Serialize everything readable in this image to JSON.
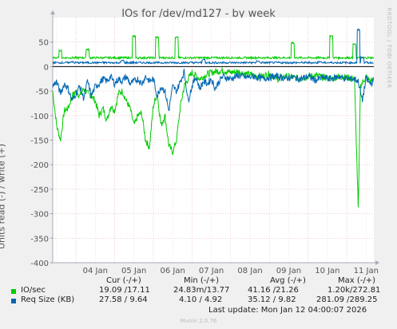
{
  "page": {
    "title": "IOs for /dev/md127 - by week",
    "side_label": "RRDTOOL / TOBI OETIKER",
    "footer_brand": "Munin 2.0.76"
  },
  "chart_data": {
    "type": "line",
    "title": "IOs for /dev/md127 - by week",
    "ylabel": "Units read (-) / write (+)",
    "ylim": [
      -400,
      100
    ],
    "yticks": [
      50,
      0,
      -50,
      -100,
      -150,
      -200,
      -250,
      -300,
      -350,
      -400
    ],
    "xlim": [
      3.4,
      11.7
    ],
    "xticks": [
      {
        "label": "04 Jan",
        "x": 4
      },
      {
        "label": "05 Jan",
        "x": 5
      },
      {
        "label": "06 Jan",
        "x": 6
      },
      {
        "label": "07 Jan",
        "x": 7
      },
      {
        "label": "08 Jan",
        "x": 8
      },
      {
        "label": "09 Jan",
        "x": 9
      },
      {
        "label": "10 Jan",
        "x": 10
      },
      {
        "label": "11 Jan",
        "x": 11
      }
    ],
    "grid": true,
    "series": [
      {
        "name": "IO/sec",
        "color": "#00cc00",
        "write_baseline": 18,
        "write_spikes": [
          [
            3.6,
            33
          ],
          [
            4.3,
            35
          ],
          [
            5.5,
            62
          ],
          [
            6.1,
            60
          ],
          [
            6.6,
            60
          ],
          [
            9.6,
            48
          ],
          [
            10.6,
            62
          ],
          [
            11.2,
            45
          ]
        ],
        "read": [
          [
            3.4,
            -50
          ],
          [
            3.5,
            -120
          ],
          [
            3.6,
            -150
          ],
          [
            3.7,
            -90
          ],
          [
            3.8,
            -85
          ],
          [
            3.9,
            -60
          ],
          [
            4.0,
            -50
          ],
          [
            4.1,
            -60
          ],
          [
            4.2,
            -45
          ],
          [
            4.3,
            -55
          ],
          [
            4.4,
            -60
          ],
          [
            4.5,
            -70
          ],
          [
            4.6,
            -100
          ],
          [
            4.7,
            -85
          ],
          [
            4.8,
            -110
          ],
          [
            4.9,
            -80
          ],
          [
            5.0,
            -90
          ],
          [
            5.1,
            -55
          ],
          [
            5.2,
            -50
          ],
          [
            5.3,
            -70
          ],
          [
            5.4,
            -85
          ],
          [
            5.5,
            -120
          ],
          [
            5.6,
            -100
          ],
          [
            5.7,
            -95
          ],
          [
            5.8,
            -150
          ],
          [
            5.9,
            -165
          ],
          [
            6.0,
            -80
          ],
          [
            6.1,
            -55
          ],
          [
            6.2,
            -120
          ],
          [
            6.3,
            -100
          ],
          [
            6.4,
            -160
          ],
          [
            6.5,
            -175
          ],
          [
            6.6,
            -150
          ],
          [
            6.7,
            -80
          ],
          [
            6.8,
            -40
          ],
          [
            6.9,
            -25
          ],
          [
            7.0,
            -12
          ],
          [
            7.2,
            -25
          ],
          [
            7.4,
            -15
          ],
          [
            7.6,
            -10
          ],
          [
            7.8,
            -8
          ],
          [
            8.0,
            -12
          ],
          [
            8.2,
            -10
          ],
          [
            8.4,
            -15
          ],
          [
            8.6,
            -18
          ],
          [
            8.8,
            -20
          ],
          [
            9.0,
            -15
          ],
          [
            9.2,
            -25
          ],
          [
            9.4,
            -20
          ],
          [
            9.6,
            -22
          ],
          [
            9.8,
            -25
          ],
          [
            10.0,
            -20
          ],
          [
            10.2,
            -18
          ],
          [
            10.4,
            -22
          ],
          [
            10.6,
            -25
          ],
          [
            10.8,
            -20
          ],
          [
            11.0,
            -22
          ],
          [
            11.2,
            -25
          ],
          [
            11.3,
            -300
          ],
          [
            11.35,
            -40
          ],
          [
            11.5,
            -20
          ],
          [
            11.6,
            -30
          ],
          [
            11.7,
            -25
          ]
        ]
      },
      {
        "name": "Req Size (KB)",
        "color": "#0066b3",
        "write_baseline": 8,
        "write_spikes": [
          [
            3.9,
            10
          ],
          [
            5.2,
            12
          ],
          [
            7.3,
            14
          ],
          [
            8.7,
            11
          ],
          [
            10.3,
            10
          ],
          [
            11.3,
            75
          ],
          [
            11.4,
            18
          ]
        ],
        "read": [
          [
            3.4,
            -40
          ],
          [
            3.5,
            -30
          ],
          [
            3.6,
            -55
          ],
          [
            3.7,
            -35
          ],
          [
            3.8,
            -45
          ],
          [
            3.9,
            -70
          ],
          [
            4.0,
            -55
          ],
          [
            4.1,
            -40
          ],
          [
            4.2,
            -65
          ],
          [
            4.3,
            -30
          ],
          [
            4.4,
            -60
          ],
          [
            4.5,
            -40
          ],
          [
            4.6,
            -35
          ],
          [
            4.7,
            -25
          ],
          [
            4.8,
            -30
          ],
          [
            4.9,
            -20
          ],
          [
            5.0,
            -35
          ],
          [
            5.1,
            -25
          ],
          [
            5.2,
            -30
          ],
          [
            5.3,
            -20
          ],
          [
            5.4,
            -35
          ],
          [
            5.5,
            -30
          ],
          [
            5.6,
            -25
          ],
          [
            5.7,
            -35
          ],
          [
            5.8,
            -20
          ],
          [
            5.9,
            -30
          ],
          [
            6.0,
            -25
          ],
          [
            6.1,
            -60
          ],
          [
            6.2,
            -40
          ],
          [
            6.3,
            -50
          ],
          [
            6.4,
            -90
          ],
          [
            6.5,
            -40
          ],
          [
            6.6,
            -50
          ],
          [
            6.7,
            -30
          ],
          [
            6.8,
            -10
          ],
          [
            6.9,
            -70
          ],
          [
            7.0,
            -40
          ],
          [
            7.1,
            -20
          ],
          [
            7.2,
            -45
          ],
          [
            7.3,
            -30
          ],
          [
            7.4,
            -35
          ],
          [
            7.5,
            -25
          ],
          [
            7.6,
            -45
          ],
          [
            7.7,
            -30
          ],
          [
            7.8,
            -20
          ],
          [
            8.0,
            -25
          ],
          [
            8.2,
            -18
          ],
          [
            8.4,
            -22
          ],
          [
            8.6,
            -20
          ],
          [
            8.8,
            -25
          ],
          [
            9.0,
            -22
          ],
          [
            9.2,
            -20
          ],
          [
            9.4,
            -24
          ],
          [
            9.6,
            -22
          ],
          [
            9.8,
            -25
          ],
          [
            10.0,
            -20
          ],
          [
            10.2,
            -28
          ],
          [
            10.4,
            -22
          ],
          [
            10.6,
            -25
          ],
          [
            10.8,
            -20
          ],
          [
            11.0,
            -25
          ],
          [
            11.2,
            -25
          ],
          [
            11.3,
            -30
          ],
          [
            11.4,
            -70
          ],
          [
            11.5,
            -25
          ],
          [
            11.6,
            -35
          ],
          [
            11.7,
            -30
          ]
        ]
      }
    ],
    "legend": {
      "headers": [
        "Cur (-/+)",
        "Min (-/+)",
        "Avg (-/+)",
        "Max (-/+)"
      ],
      "rows": [
        {
          "label": "IO/sec",
          "color": "#00cc00",
          "cur": "19.09 /17.11",
          "min": "24.83m/13.77",
          "avg": "41.16 /21.26",
          "max": "1.20k/272.81"
        },
        {
          "label": "Req Size (KB)",
          "color": "#0066b3",
          "cur": "27.58 / 9.64",
          "min": "4.10 / 4.92",
          "avg": "35.12 / 9.82",
          "max": "281.09 /289.25"
        }
      ]
    },
    "last_update": "Last update:  Mon Jan 12 04:00:07 2026"
  }
}
